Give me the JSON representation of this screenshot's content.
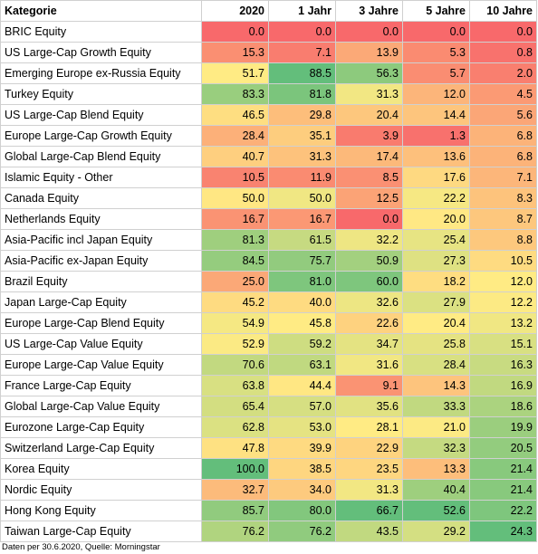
{
  "chart_data": {
    "type": "table",
    "columns": [
      "Kategorie",
      "2020",
      "1 Jahr",
      "3 Jahre",
      "5 Jahre",
      "10 Jahre"
    ],
    "rows": [
      {
        "category": "BRIC Equity",
        "values": [
          "0.0",
          "0.0",
          "0.0",
          "0.0",
          "0.0"
        ]
      },
      {
        "category": "US Large-Cap Growth Equity",
        "values": [
          "15.3",
          "7.1",
          "13.9",
          "5.3",
          "0.8"
        ]
      },
      {
        "category": "Emerging Europe ex-Russia Equity",
        "values": [
          "51.7",
          "88.5",
          "56.3",
          "5.7",
          "2.0"
        ]
      },
      {
        "category": "Turkey Equity",
        "values": [
          "83.3",
          "81.8",
          "31.3",
          "12.0",
          "4.5"
        ]
      },
      {
        "category": "US Large-Cap Blend Equity",
        "values": [
          "46.5",
          "29.8",
          "20.4",
          "14.4",
          "5.6"
        ]
      },
      {
        "category": "Europe Large-Cap Growth Equity",
        "values": [
          "28.4",
          "35.1",
          "3.9",
          "1.3",
          "6.8"
        ]
      },
      {
        "category": "Global Large-Cap Blend Equity",
        "values": [
          "40.7",
          "31.3",
          "17.4",
          "13.6",
          "6.8"
        ]
      },
      {
        "category": "Islamic Equity - Other",
        "values": [
          "10.5",
          "11.9",
          "8.5",
          "17.6",
          "7.1"
        ]
      },
      {
        "category": "Canada Equity",
        "values": [
          "50.0",
          "50.0",
          "12.5",
          "22.2",
          "8.3"
        ]
      },
      {
        "category": "Netherlands Equity",
        "values": [
          "16.7",
          "16.7",
          "0.0",
          "20.0",
          "8.7"
        ]
      },
      {
        "category": "Asia-Pacific incl Japan Equity",
        "values": [
          "81.3",
          "61.5",
          "32.2",
          "25.4",
          "8.8"
        ]
      },
      {
        "category": "Asia-Pacific ex-Japan Equity",
        "values": [
          "84.5",
          "75.7",
          "50.9",
          "27.3",
          "10.5"
        ]
      },
      {
        "category": "Brazil Equity",
        "values": [
          "25.0",
          "81.0",
          "60.0",
          "18.2",
          "12.0"
        ]
      },
      {
        "category": "Japan Large-Cap Equity",
        "values": [
          "45.2",
          "40.0",
          "32.6",
          "27.9",
          "12.2"
        ]
      },
      {
        "category": "Europe Large-Cap Blend Equity",
        "values": [
          "54.9",
          "45.8",
          "22.6",
          "20.4",
          "13.2"
        ]
      },
      {
        "category": "US Large-Cap Value Equity",
        "values": [
          "52.9",
          "59.2",
          "34.7",
          "25.8",
          "15.1"
        ]
      },
      {
        "category": "Europe Large-Cap Value Equity",
        "values": [
          "70.6",
          "63.1",
          "31.6",
          "28.4",
          "16.3"
        ]
      },
      {
        "category": "France Large-Cap Equity",
        "values": [
          "63.8",
          "44.4",
          "9.1",
          "14.3",
          "16.9"
        ]
      },
      {
        "category": "Global Large-Cap Value Equity",
        "values": [
          "65.4",
          "57.0",
          "35.6",
          "33.3",
          "18.6"
        ]
      },
      {
        "category": "Eurozone Large-Cap Equity",
        "values": [
          "62.8",
          "53.0",
          "28.1",
          "21.0",
          "19.9"
        ]
      },
      {
        "category": "Switzerland Large-Cap Equity",
        "values": [
          "47.8",
          "39.9",
          "22.9",
          "32.3",
          "20.5"
        ]
      },
      {
        "category": "Korea Equity",
        "values": [
          "100.0",
          "38.5",
          "23.5",
          "13.3",
          "21.4"
        ]
      },
      {
        "category": "Nordic Equity",
        "values": [
          "32.7",
          "34.0",
          "31.3",
          "40.4",
          "21.4"
        ]
      },
      {
        "category": "Hong Kong Equity",
        "values": [
          "85.7",
          "80.0",
          "66.7",
          "52.6",
          "22.2"
        ]
      },
      {
        "category": "Taiwan Large-Cap Equity",
        "values": [
          "76.2",
          "76.2",
          "43.5",
          "29.2",
          "24.3"
        ]
      }
    ],
    "color_scale": {
      "low": "#f8696b",
      "mid": "#ffeb84",
      "high": "#63be7b"
    },
    "source": "Daten per 30.6.2020, Quelle: Morningstar"
  }
}
